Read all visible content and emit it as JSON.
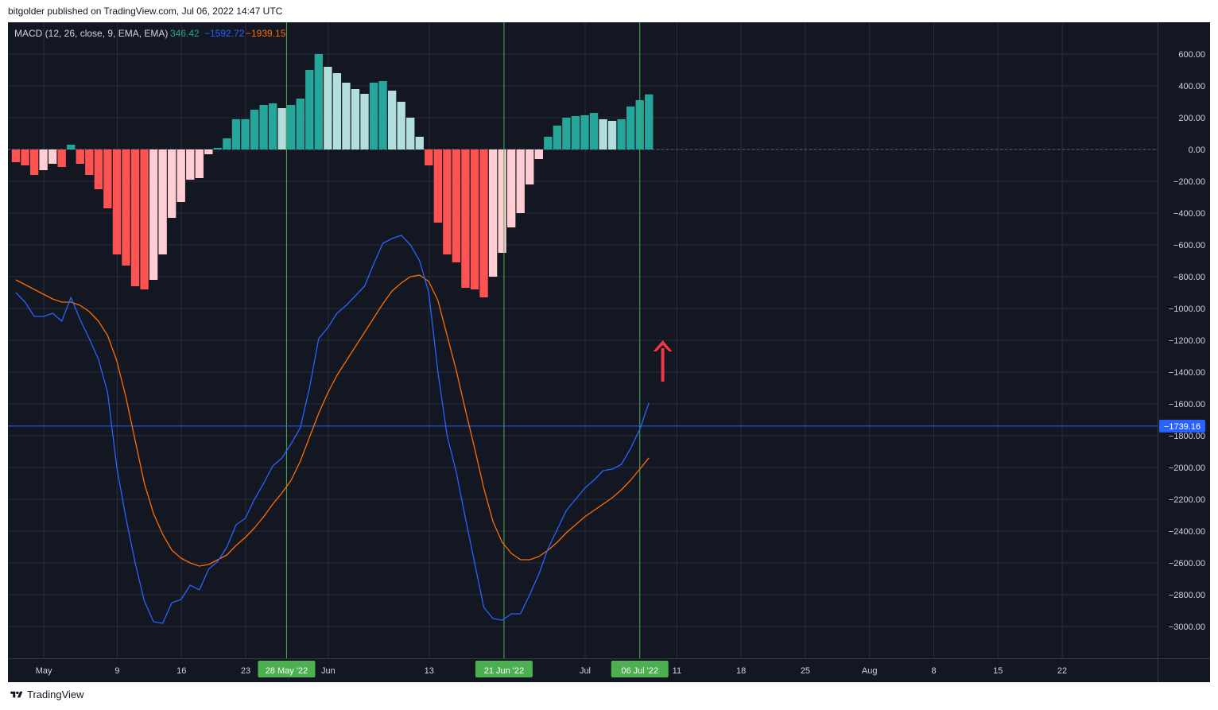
{
  "header": {
    "published_text": "bitgolder published on TradingView.com, Jul 06, 2022 14:47 UTC"
  },
  "footer": {
    "brand": "TradingView",
    "logo_icon": "tradingview-logo-icon"
  },
  "legend": {
    "indicator": "MACD (12, 26, close, 9, EMA, EMA)",
    "histogram_value": "346.42",
    "macd_value": "−1592.72",
    "signal_value": "−1939.15"
  },
  "colors": {
    "background": "#131722",
    "grid": "#2a2e39",
    "hist_pos_strong": "#26a69a",
    "hist_pos_weak": "#b2dfdb",
    "hist_neg_strong": "#ff5252",
    "hist_neg_weak": "#ffcdd2",
    "macd_line": "#2962ff",
    "signal_line": "#ff6d00",
    "h_line": "#2962ff",
    "marker_line": "#4caf50",
    "arrow": "#f23645",
    "axis_text": "#d1d4dc"
  },
  "chart_data": {
    "type": "bar",
    "y_axis": {
      "ylim": [
        -3200,
        800
      ],
      "ticks": [
        800,
        600,
        400,
        200,
        0,
        -200,
        -400,
        -600,
        -800,
        -1000,
        -1200,
        -1400,
        -1600,
        -1800,
        -2000,
        -2200,
        -2400,
        -2600,
        -2800,
        -3000
      ],
      "tick_labels": [
        "800.00",
        "600.00",
        "400.00",
        "200.00",
        "0.00",
        "−200.00",
        "−400.00",
        "−600.00",
        "−800.00",
        "−1000.00",
        "−1200.00",
        "−1400.00",
        "−1600.00",
        "−1800.00",
        "−2000.00",
        "−2200.00",
        "−2400.00",
        "−2600.00",
        "−2800.00",
        "−3000.00"
      ]
    },
    "x_axis": {
      "bar_range": [
        0,
        126
      ],
      "ticks": [
        {
          "i": 3,
          "label": "May"
        },
        {
          "i": 11,
          "label": "9"
        },
        {
          "i": 18,
          "label": "16"
        },
        {
          "i": 25,
          "label": "23"
        },
        {
          "i": 34,
          "label": "Jun"
        },
        {
          "i": 45,
          "label": "13"
        },
        {
          "i": 62,
          "label": "Jul"
        },
        {
          "i": 72,
          "label": "11"
        },
        {
          "i": 79,
          "label": "18"
        },
        {
          "i": 86,
          "label": "25"
        },
        {
          "i": 93,
          "label": "Aug"
        },
        {
          "i": 100,
          "label": "8"
        },
        {
          "i": 107,
          "label": "15"
        },
        {
          "i": 114,
          "label": "22"
        }
      ]
    },
    "vertical_markers": [
      {
        "i": 29.5,
        "label": "28 May '22"
      },
      {
        "i": 53.2,
        "label": "21 Jun '22"
      },
      {
        "i": 68,
        "label": "06 Jul '22"
      }
    ],
    "horizontal_line": {
      "value": -1739.16,
      "label": "−1739.16"
    },
    "arrow": {
      "i": 70.5,
      "y_tail": -1460,
      "y_head": -1200,
      "direction": "up"
    },
    "histogram": [
      -80,
      -100,
      -160,
      -130,
      -90,
      -110,
      30,
      -90,
      -160,
      -250,
      -370,
      -660,
      -730,
      -860,
      -880,
      -820,
      -660,
      -430,
      -330,
      -190,
      -180,
      -30,
      10,
      70,
      190,
      190,
      250,
      280,
      290,
      260,
      280,
      320,
      500,
      600,
      520,
      480,
      420,
      380,
      350,
      420,
      430,
      370,
      300,
      200,
      80,
      -100,
      -460,
      -660,
      -710,
      -870,
      -880,
      -930,
      -800,
      -650,
      -490,
      -400,
      -220,
      -60,
      80,
      150,
      200,
      210,
      215,
      230,
      190,
      180,
      190,
      270,
      310,
      346.42
    ],
    "macd": [
      -900,
      -960,
      -1050,
      -1050,
      -1030,
      -1080,
      -930,
      -1070,
      -1190,
      -1320,
      -1530,
      -2000,
      -2320,
      -2600,
      -2840,
      -2970,
      -2980,
      -2850,
      -2830,
      -2740,
      -2770,
      -2640,
      -2590,
      -2500,
      -2360,
      -2320,
      -2200,
      -2100,
      -1990,
      -1940,
      -1850,
      -1750,
      -1500,
      -1190,
      -1120,
      -1030,
      -980,
      -920,
      -860,
      -720,
      -590,
      -560,
      -540,
      -600,
      -700,
      -900,
      -1400,
      -1800,
      -2030,
      -2320,
      -2600,
      -2880,
      -2950,
      -2960,
      -2920,
      -2920,
      -2800,
      -2670,
      -2510,
      -2390,
      -2270,
      -2200,
      -2130,
      -2080,
      -2020,
      -2010,
      -1980,
      -1880,
      -1760,
      -1592.72
    ],
    "signal": [
      -820,
      -850,
      -880,
      -910,
      -940,
      -960,
      -960,
      -980,
      -1020,
      -1080,
      -1170,
      -1330,
      -1560,
      -1830,
      -2100,
      -2290,
      -2420,
      -2520,
      -2570,
      -2600,
      -2620,
      -2610,
      -2580,
      -2550,
      -2490,
      -2440,
      -2380,
      -2310,
      -2230,
      -2160,
      -2080,
      -1960,
      -1810,
      -1660,
      -1530,
      -1420,
      -1330,
      -1240,
      -1150,
      -1060,
      -970,
      -890,
      -840,
      -800,
      -790,
      -830,
      -950,
      -1170,
      -1390,
      -1640,
      -1880,
      -2130,
      -2340,
      -2470,
      -2540,
      -2580,
      -2580,
      -2560,
      -2520,
      -2470,
      -2410,
      -2360,
      -2310,
      -2270,
      -2230,
      -2190,
      -2140,
      -2080,
      -2010,
      -1939.15
    ]
  }
}
